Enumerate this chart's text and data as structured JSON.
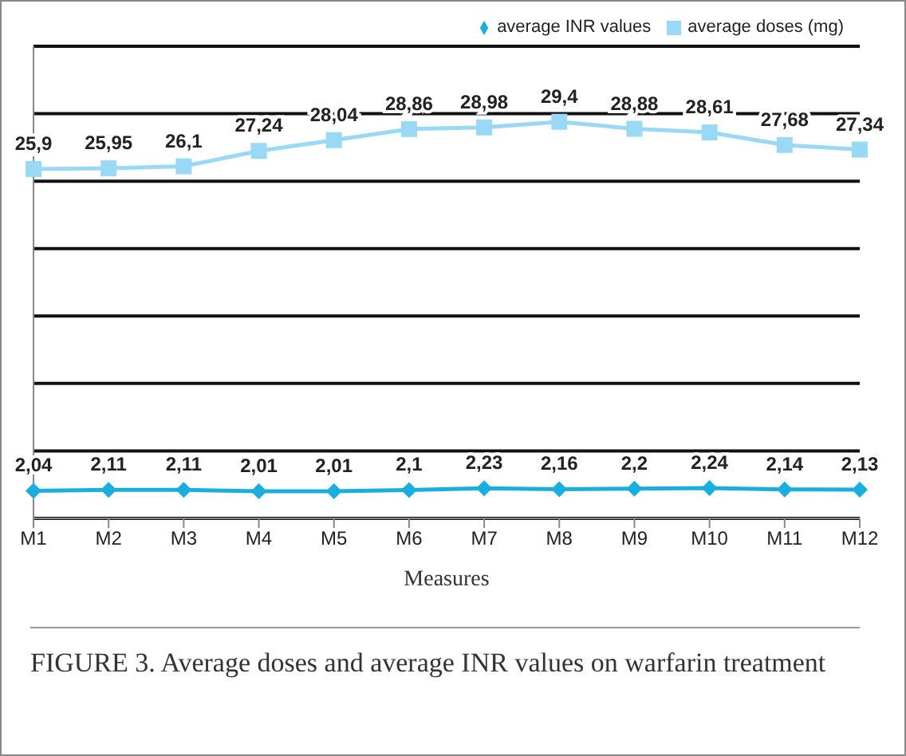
{
  "chart_data": {
    "type": "line",
    "title": "FIGURE 3.  Average doses and average INR values on warfarin treatment",
    "xlabel": "Measures",
    "categories": [
      "M1",
      "M2",
      "M3",
      "M4",
      "M5",
      "M6",
      "M7",
      "M8",
      "M9",
      "M10",
      "M11",
      "M12"
    ],
    "series": [
      {
        "name": "average INR values",
        "color": "#1aaee0",
        "marker": "diamond",
        "values": [
          2.04,
          2.11,
          2.11,
          2.01,
          2.01,
          2.1,
          2.23,
          2.16,
          2.2,
          2.24,
          2.14,
          2.13
        ],
        "value_labels": [
          "2,04",
          "2,11",
          "2,11",
          "2,01",
          "2,01",
          "2,1",
          "2,23",
          "2,16",
          "2,2",
          "2,24",
          "2,14",
          "2,13"
        ]
      },
      {
        "name": "average doses (mg)",
        "color": "#99d9f5",
        "marker": "square",
        "values": [
          25.9,
          25.95,
          26.1,
          27.24,
          28.04,
          28.86,
          28.98,
          29.4,
          28.88,
          28.61,
          27.68,
          27.34
        ],
        "value_labels": [
          "25,9",
          "25,95",
          "26,1",
          "27,24",
          "28,04",
          "28,86",
          "28,98",
          "29,4",
          "28,88",
          "28,61",
          "27,68",
          "27,34"
        ]
      }
    ],
    "tick_labels": "x",
    "grid": "y",
    "legend": "top right"
  }
}
